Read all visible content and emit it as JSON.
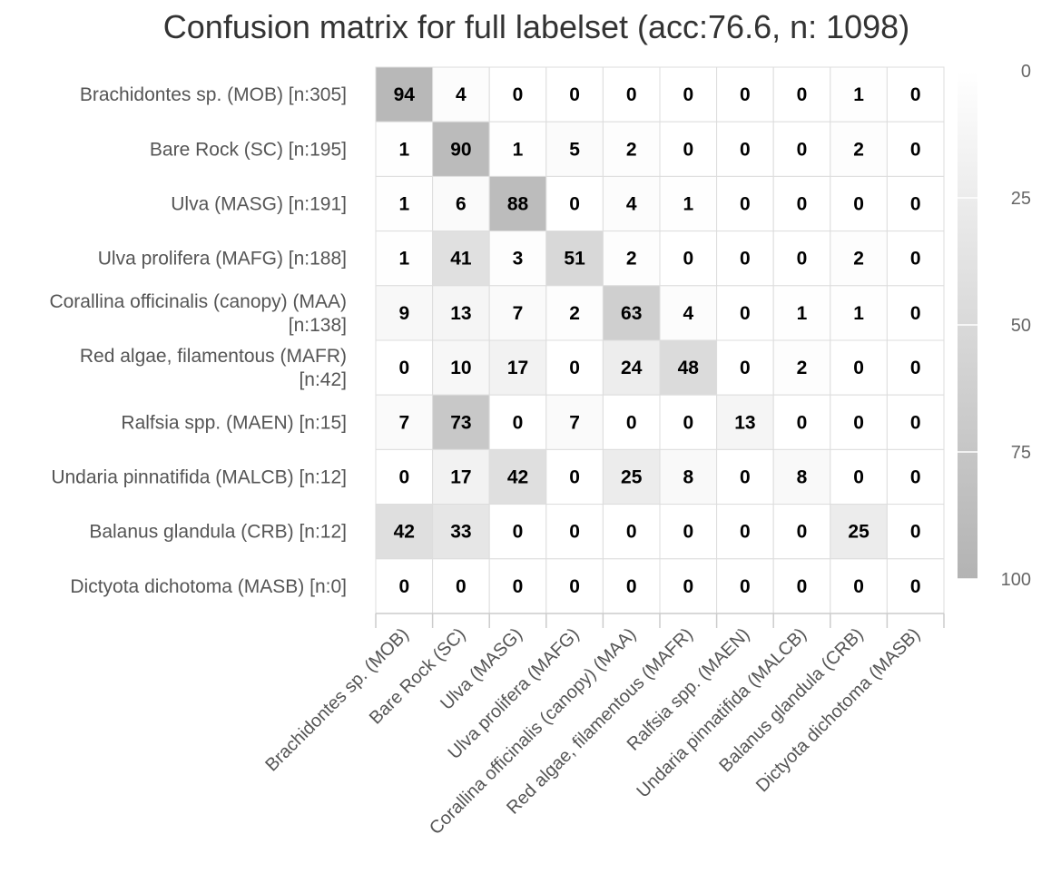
{
  "chart_data": {
    "type": "heatmap",
    "title": "Confusion matrix for full labelset (acc:76.6, n: 1098)",
    "y_categories": [
      "Brachidontes sp. (MOB) [n:305]",
      "Bare Rock (SC) [n:195]",
      "Ulva (MASG) [n:191]",
      "Ulva prolifera (MAFG) [n:188]",
      "Corallina officinalis (canopy) (MAA)|[n:138]",
      "Red algae, filamentous (MAFR)|[n:42]",
      "Ralfsia spp. (MAEN) [n:15]",
      "Undaria pinnatifida (MALCB) [n:12]",
      "Balanus glandula (CRB) [n:12]",
      "Dictyota dichotoma (MASB) [n:0]"
    ],
    "x_categories": [
      "Brachidontes sp. (MOB)",
      "Bare Rock (SC)",
      "Ulva (MASG)",
      "Ulva prolifera (MAFG)",
      "Corallina officinalis (canopy) (MAA)",
      "Red algae, filamentous (MAFR)",
      "Ralfsia spp. (MAEN)",
      "Undaria pinnatifida (MALCB)",
      "Balanus glandula (CRB)",
      "Dictyota dichotoma (MASB)"
    ],
    "values": [
      [
        94,
        4,
        0,
        0,
        0,
        0,
        0,
        0,
        1,
        0
      ],
      [
        1,
        90,
        1,
        5,
        2,
        0,
        0,
        0,
        2,
        0
      ],
      [
        1,
        6,
        88,
        0,
        4,
        1,
        0,
        0,
        0,
        0
      ],
      [
        1,
        41,
        3,
        51,
        2,
        0,
        0,
        0,
        2,
        0
      ],
      [
        9,
        13,
        7,
        2,
        63,
        4,
        0,
        1,
        1,
        0
      ],
      [
        0,
        10,
        17,
        0,
        24,
        48,
        0,
        2,
        0,
        0
      ],
      [
        7,
        73,
        0,
        7,
        0,
        0,
        13,
        0,
        0,
        0
      ],
      [
        0,
        17,
        42,
        0,
        25,
        8,
        0,
        8,
        0,
        0
      ],
      [
        42,
        33,
        0,
        0,
        0,
        0,
        0,
        0,
        25,
        0
      ],
      [
        0,
        0,
        0,
        0,
        0,
        0,
        0,
        0,
        0,
        0
      ]
    ],
    "color_axis": {
      "min": 0,
      "max": 100,
      "ticks": [
        0,
        25,
        50,
        75,
        100
      ],
      "min_color": "#ffffff",
      "max_color": "#b3b3b3"
    },
    "grid_color": "#dddddd",
    "legend_position": "right"
  }
}
